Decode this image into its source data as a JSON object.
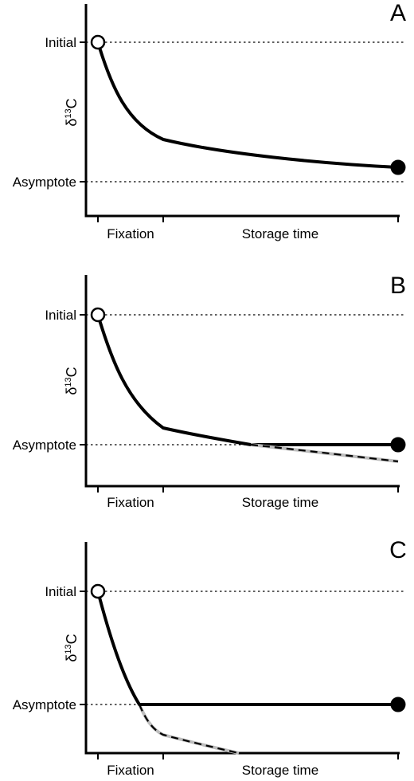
{
  "chart_data": [
    {
      "type": "line",
      "panel_label": "A",
      "ylabel": {
        "delta": "δ",
        "sup": "13",
        "element": "C"
      },
      "y_tick_labels": [
        "Initial",
        "Asymptote"
      ],
      "x_tick_labels": [
        "Fixation",
        "Storage time"
      ],
      "ylim": [
        -0.3,
        1.2
      ],
      "xlim": [
        -0.08,
        1.05
      ],
      "reference_lines": [
        1.0,
        0.0
      ],
      "series": [
        {
          "style": "solid",
          "x": [
            0,
            0.03,
            0.06,
            0.1,
            0.15,
            0.2,
            0.25,
            0.28,
            0.4,
            0.55,
            0.7,
            0.85,
            1.0
          ],
          "y": [
            1.0,
            0.86,
            0.74,
            0.62,
            0.5,
            0.42,
            0.37,
            0.31,
            0.25,
            0.19,
            0.14,
            0.1,
            0.1
          ]
        }
      ],
      "markers": [
        {
          "x": 0,
          "y": 1.0,
          "fill": "open"
        },
        {
          "x": 1.0,
          "y": 0.1,
          "fill": "filled"
        }
      ]
    },
    {
      "type": "line",
      "panel_label": "B",
      "ylabel": {
        "delta": "δ",
        "sup": "13",
        "element": "C"
      },
      "y_tick_labels": [
        "Initial",
        "Asymptote"
      ],
      "x_tick_labels": [
        "Fixation",
        "Storage time"
      ],
      "ylim": [
        -0.3,
        1.2
      ],
      "xlim": [
        -0.08,
        1.05
      ],
      "reference_lines": [
        1.0,
        0.0
      ],
      "series": [
        {
          "style": "solid",
          "x": [
            0,
            0.03,
            0.06,
            0.1,
            0.15,
            0.2,
            0.25,
            0.28,
            0.4,
            0.52,
            0.65,
            0.8,
            1.0
          ],
          "y": [
            1.0,
            0.86,
            0.72,
            0.58,
            0.44,
            0.33,
            0.25,
            0.13,
            0.08,
            0.0,
            0.0,
            0.0,
            0.0
          ]
        },
        {
          "style": "grey-dashed",
          "x": [
            0.52,
            0.65,
            0.8,
            1.0
          ],
          "y": [
            0.0,
            -0.04,
            -0.08,
            -0.13
          ]
        }
      ],
      "markers": [
        {
          "x": 0,
          "y": 1.0,
          "fill": "open"
        },
        {
          "x": 1.0,
          "y": 0.0,
          "fill": "filled"
        }
      ]
    },
    {
      "type": "line",
      "panel_label": "C",
      "ylabel": {
        "delta": "δ",
        "sup": "13",
        "element": "C"
      },
      "y_tick_labels": [
        "Initial",
        "Asymptote"
      ],
      "x_tick_labels": [
        "Fixation",
        "Storage time"
      ],
      "ylim": [
        -0.45,
        1.2
      ],
      "xlim": [
        -0.08,
        1.05
      ],
      "reference_lines": [
        1.0,
        0.0
      ],
      "series": [
        {
          "style": "solid",
          "x": [
            0,
            0.03,
            0.06,
            0.1,
            0.14,
            0.18,
            0.4,
            0.6,
            0.8,
            1.0
          ],
          "y": [
            1.0,
            0.84,
            0.66,
            0.42,
            0.2,
            0.0,
            0.0,
            0.0,
            0.0,
            0.0
          ]
        },
        {
          "style": "grey-dashed",
          "x": [
            0.18,
            0.22,
            0.28,
            0.4,
            0.6
          ],
          "y": [
            0.0,
            -0.13,
            -0.26,
            -0.32,
            -0.44
          ]
        }
      ],
      "markers": [
        {
          "x": 0,
          "y": 1.0,
          "fill": "open"
        },
        {
          "x": 1.0,
          "y": 0.0,
          "fill": "filled"
        }
      ]
    }
  ]
}
